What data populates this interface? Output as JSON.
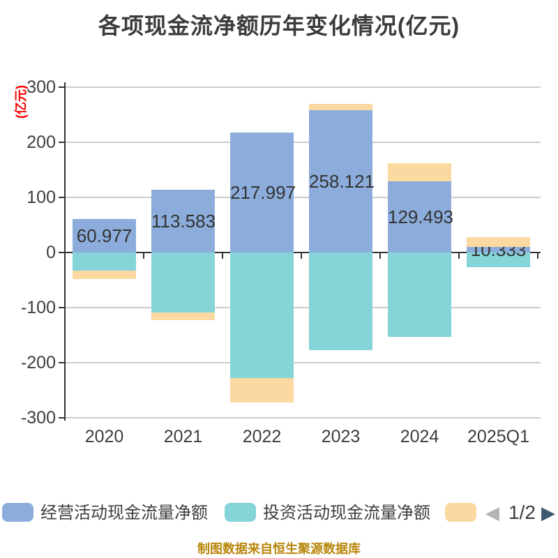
{
  "title": "各项现金流净额历年变化情况(亿元)",
  "y_axis_unit": "(亿元)",
  "footer": "制图数据来自恒生聚源数据库",
  "legend": {
    "items": [
      {
        "label": "经营活动现金流量净额",
        "color": "#8CADDB"
      },
      {
        "label": "投资活动现金流量净额",
        "color": "#84D4D8"
      },
      {
        "label": "",
        "color": "#FBD9A0"
      }
    ],
    "pagination": {
      "prev": "◀",
      "current": "1/2",
      "next": "▶"
    }
  },
  "chart_data": {
    "type": "bar",
    "stacked": true,
    "title": "各项现金流净额历年变化情况(亿元)",
    "ylabel": "(亿元)",
    "ylim": [
      -300,
      300
    ],
    "y_ticks": [
      300,
      200,
      100,
      0,
      -100,
      -200,
      -300
    ],
    "grid": true,
    "legend_position": "bottom",
    "categories": [
      "2020",
      "2021",
      "2022",
      "2023",
      "2024",
      "2025Q1"
    ],
    "series": [
      {
        "name": "经营活动现金流量净额",
        "color": "#8CADDB",
        "values": [
          60.977,
          113.583,
          217.997,
          258.121,
          129.493,
          10.333
        ],
        "data_labels": [
          "60.977",
          "113.583",
          "217.997",
          "258.121",
          "129.493",
          "10.333"
        ]
      },
      {
        "name": "投资活动现金流量净额",
        "color": "#84D4D8",
        "values": [
          -33,
          -109,
          -228,
          -177,
          -153,
          -27
        ]
      },
      {
        "name": "",
        "color": "#FBD9A0",
        "values": [
          -15,
          -14,
          -44,
          12,
          32,
          17.5
        ]
      }
    ]
  },
  "colors": {
    "operating_series": "#8CADDB",
    "investing_series": "#84D4D8",
    "third_series": "#FBD9A0",
    "title_text": "#3B3B3B",
    "axis_text": "#3D3D3D",
    "bar_label_text": "#333333",
    "grid_line": "#CCCCCC",
    "axis_line": "#333333",
    "y_unit_label": "#FF0000",
    "footer_text": "#B8860B",
    "page_prev_arrow": "#B3B3B3",
    "page_next_arrow": "#3F5872"
  }
}
